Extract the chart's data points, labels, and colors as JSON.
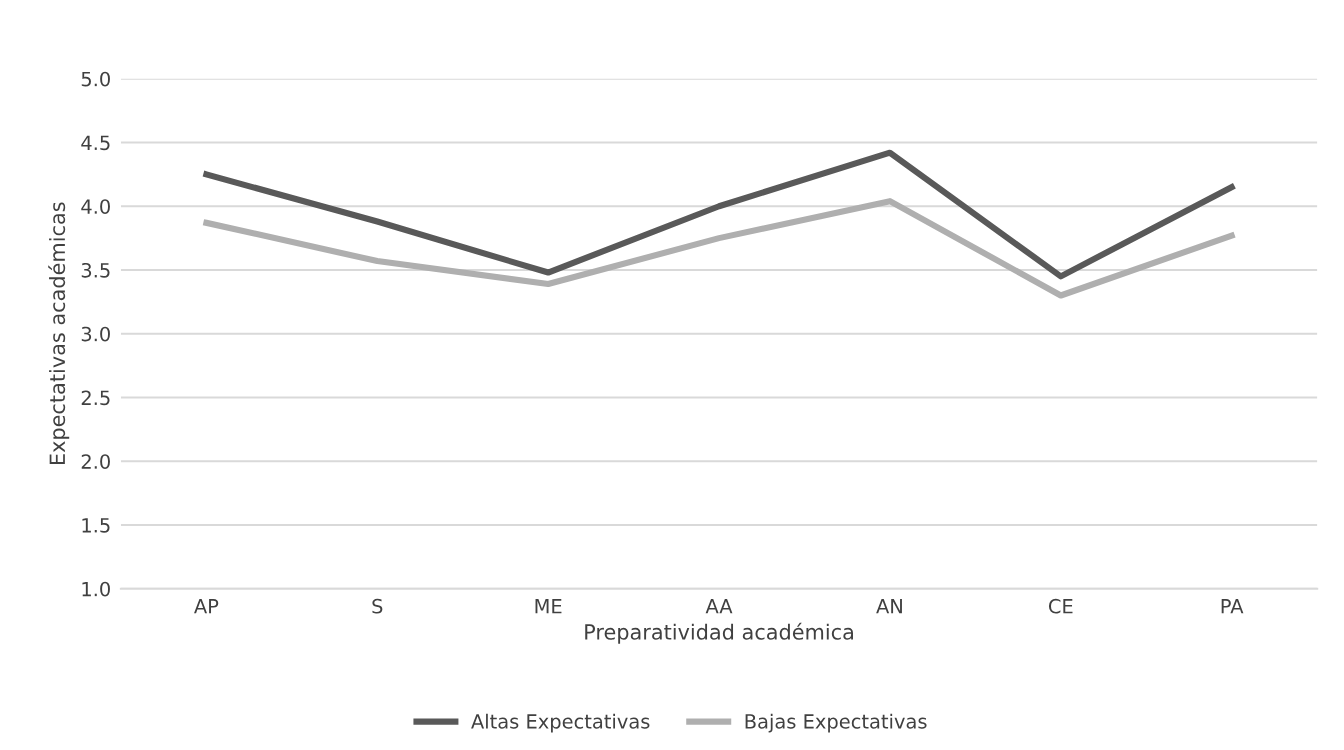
{
  "chart_data": {
    "type": "line",
    "xlabel": "Preparatividad académica",
    "ylabel": "Expectativas académicas",
    "categories": [
      "AP",
      "S",
      "ME",
      "AA",
      "AN",
      "CE",
      "PA"
    ],
    "series": [
      {
        "name": "Altas Expectativas",
        "color": "#595959",
        "values": [
          4.25,
          3.88,
          3.48,
          4.0,
          4.42,
          3.45,
          4.15
        ]
      },
      {
        "name": "Bajas Expectativas",
        "color": "#afafaf",
        "values": [
          3.87,
          3.57,
          3.39,
          3.75,
          4.04,
          3.3,
          3.77
        ]
      }
    ],
    "ylim": [
      1.0,
      5.0
    ],
    "yticks": [
      {
        "value": 1.0,
        "label": "1.0"
      },
      {
        "value": 1.5,
        "label": "1.5"
      },
      {
        "value": 2.0,
        "label": "2.0"
      },
      {
        "value": 2.5,
        "label": "2.5"
      },
      {
        "value": 3.0,
        "label": "3.0"
      },
      {
        "value": 3.5,
        "label": "3.5"
      },
      {
        "value": 4.0,
        "label": "4.0"
      },
      {
        "value": 4.5,
        "label": "4.5"
      },
      {
        "value": 5.0,
        "label": "5.0"
      }
    ],
    "grid": "y",
    "legend": "bottom",
    "marker": "none",
    "line_style": "solid"
  }
}
